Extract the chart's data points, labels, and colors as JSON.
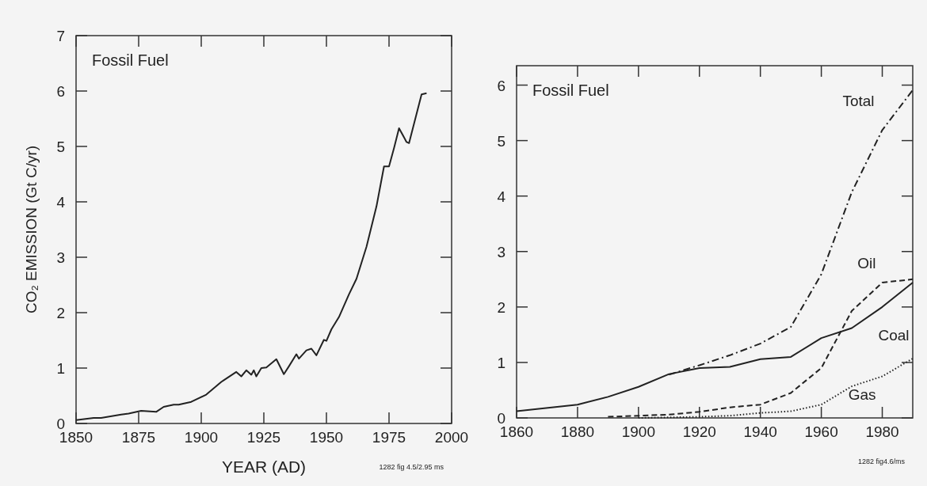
{
  "chart_data": [
    {
      "type": "line",
      "title": "Fossil Fuel",
      "xlabel": "YEAR (AD)",
      "ylabel": "CO₂ EMISSION (Gt C/yr)",
      "xlim": [
        1850,
        2000
      ],
      "ylim": [
        0,
        7
      ],
      "xticks": [
        1850,
        1875,
        1900,
        1925,
        1950,
        1975,
        2000
      ],
      "yticks": [
        0,
        1,
        2,
        3,
        4,
        5,
        6,
        7
      ],
      "grid": false,
      "annotations": [
        "1282 fig 4.5/2.95 ms"
      ],
      "series": [
        {
          "color": "#222222",
          "line_style": "solid",
          "x": [
            1850,
            1857,
            1860,
            1868,
            1871,
            1876,
            1882,
            1885,
            1889,
            1891,
            1896,
            1902,
            1908,
            1909,
            1914,
            1916,
            1918,
            1920,
            1921,
            1922,
            1924,
            1926,
            1930,
            1933,
            1935,
            1938,
            1939,
            1942,
            1944,
            1946,
            1949,
            1950,
            1952,
            1955,
            1959,
            1962,
            1966,
            1970,
            1973,
            1975,
            1977,
            1979,
            1982,
            1983,
            1988,
            1990
          ],
          "values": [
            0.06,
            0.1,
            0.1,
            0.16,
            0.18,
            0.23,
            0.21,
            0.3,
            0.34,
            0.34,
            0.39,
            0.52,
            0.75,
            0.78,
            0.93,
            0.85,
            0.96,
            0.88,
            0.96,
            0.85,
            1.0,
            1.01,
            1.16,
            0.89,
            1.03,
            1.25,
            1.17,
            1.32,
            1.35,
            1.23,
            1.51,
            1.49,
            1.7,
            1.92,
            2.33,
            2.61,
            3.19,
            3.92,
            4.64,
            4.64,
            4.97,
            5.33,
            5.08,
            5.06,
            5.94,
            5.96
          ]
        }
      ]
    },
    {
      "type": "line",
      "title": "Fossil Fuel",
      "xlim": [
        1860,
        1990
      ],
      "ylim": [
        0,
        6.35
      ],
      "xticks": [
        1860,
        1880,
        1900,
        1920,
        1940,
        1960,
        1980
      ],
      "yticks": [
        0,
        1,
        2,
        3,
        4,
        5,
        6
      ],
      "grid": false,
      "annotations": [
        "1282 fig4.6/ms"
      ],
      "series": [
        {
          "name": "Total",
          "color": "#222222",
          "line_style": "dashdot",
          "x": [
            1910,
            1920,
            1930,
            1940,
            1950,
            1960,
            1970,
            1980,
            1990
          ],
          "values": [
            0.78,
            0.95,
            1.13,
            1.34,
            1.64,
            2.59,
            4.07,
            5.19,
            5.91
          ]
        },
        {
          "name": "Oil",
          "color": "#222222",
          "line_style": "dashed",
          "x": [
            1890,
            1900,
            1910,
            1920,
            1930,
            1940,
            1950,
            1960,
            1970,
            1980,
            1990
          ],
          "values": [
            0.02,
            0.04,
            0.06,
            0.11,
            0.19,
            0.24,
            0.45,
            0.9,
            1.93,
            2.44,
            2.5
          ]
        },
        {
          "name": "Coal",
          "color": "#222222",
          "line_style": "solid",
          "x": [
            1860,
            1880,
            1890,
            1900,
            1910,
            1920,
            1930,
            1940,
            1950,
            1960,
            1970,
            1980,
            1990
          ],
          "values": [
            0.12,
            0.24,
            0.38,
            0.56,
            0.79,
            0.9,
            0.92,
            1.06,
            1.1,
            1.44,
            1.62,
            2.0,
            2.44
          ]
        },
        {
          "name": "Gas",
          "color": "#222222",
          "line_style": "dotted",
          "x": [
            1900,
            1910,
            1920,
            1930,
            1940,
            1950,
            1960,
            1970,
            1980,
            1990
          ],
          "values": [
            0.0,
            0.01,
            0.02,
            0.04,
            0.09,
            0.12,
            0.24,
            0.57,
            0.75,
            1.07
          ]
        }
      ]
    }
  ]
}
